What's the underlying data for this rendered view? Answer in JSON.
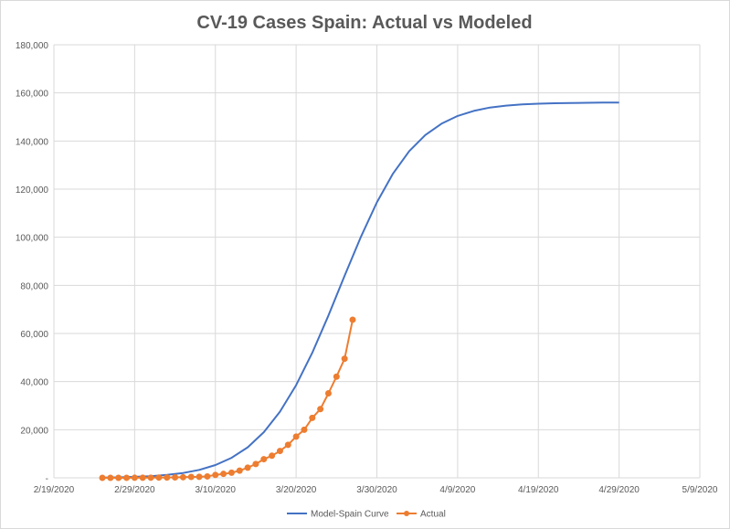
{
  "chart_data": {
    "type": "line",
    "title": "CV-19 Cases Spain: Actual vs Modeled",
    "xlabel": "",
    "ylabel": "",
    "x_axis": {
      "type": "date",
      "start": "2020-02-19",
      "end": "2020-05-09",
      "tick_labels": [
        "2/19/2020",
        "2/29/2020",
        "3/10/2020",
        "3/20/2020",
        "3/30/2020",
        "4/9/2020",
        "4/19/2020",
        "4/29/2020",
        "5/9/2020"
      ]
    },
    "ylim": [
      0,
      180000
    ],
    "y_tick_labels": [
      "-",
      "20,000",
      "40,000",
      "60,000",
      "80,000",
      "100,000",
      "120,000",
      "140,000",
      "160,000",
      "180,000"
    ],
    "grid": true,
    "legend_position": "bottom",
    "series": [
      {
        "name": "Model-Spain Curve",
        "color": "#4472C4",
        "marker": "none",
        "x_days": [
          6,
          8,
          10,
          12,
          14,
          16,
          18,
          20,
          22,
          24,
          26,
          28,
          30,
          32,
          34,
          36,
          38,
          40,
          42,
          44,
          46,
          48,
          50,
          52,
          54,
          56,
          58,
          60,
          62,
          64,
          66,
          68,
          70
        ],
        "values": [
          100,
          200,
          400,
          700,
          1200,
          2000,
          3300,
          5300,
          8300,
          12700,
          19000,
          27500,
          38500,
          52000,
          67500,
          84000,
          100000,
          114500,
          126500,
          135800,
          142500,
          147200,
          150400,
          152500,
          153900,
          154700,
          155200,
          155500,
          155700,
          155800,
          155900,
          155950,
          156000
        ]
      },
      {
        "name": "Actual",
        "color": "#ED7D31",
        "marker": "circle",
        "x_days": [
          6,
          7,
          8,
          9,
          10,
          11,
          12,
          13,
          14,
          15,
          16,
          17,
          18,
          19,
          20,
          21,
          22,
          23,
          24,
          25,
          26,
          27,
          28,
          29,
          30,
          31,
          32,
          33,
          34,
          35,
          36,
          37
        ],
        "values": [
          2,
          6,
          13,
          15,
          32,
          45,
          66,
          114,
          151,
          198,
          257,
          374,
          430,
          589,
          1204,
          1639,
          2140,
          3004,
          4231,
          5753,
          7753,
          9191,
          11178,
          13716,
          17147,
          19980,
          24926,
          28572,
          35136,
          42058,
          49515,
          65719
        ]
      }
    ]
  }
}
